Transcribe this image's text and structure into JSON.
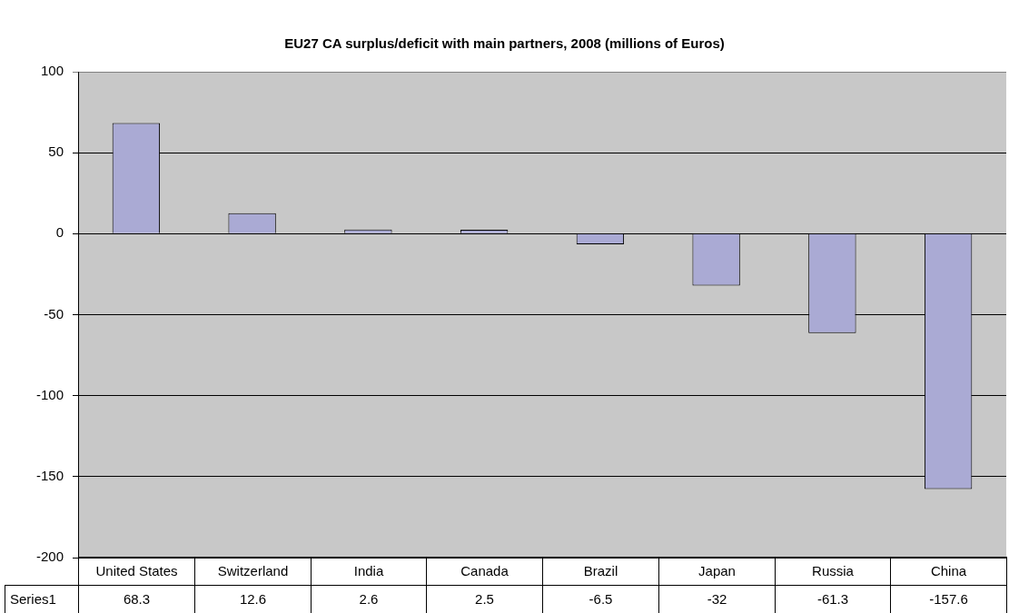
{
  "chart_data": {
    "type": "bar",
    "title": "EU27 CA surplus/deficit with main partners, 2008 (millions of Euros)",
    "categories": [
      "United States",
      "Switzerland",
      "India",
      "Canada",
      "Brazil",
      "Japan",
      "Russia",
      "China"
    ],
    "series": [
      {
        "name": "Series1",
        "color": "#aaaad4",
        "values": [
          68.3,
          12.6,
          2.6,
          2.5,
          -6.5,
          -32,
          -61.3,
          -157.6
        ]
      }
    ],
    "ylim": [
      -200,
      100
    ],
    "yticks": [
      -200,
      -150,
      -100,
      -50,
      0,
      50,
      100
    ],
    "grid": "y",
    "data_labels": true
  }
}
